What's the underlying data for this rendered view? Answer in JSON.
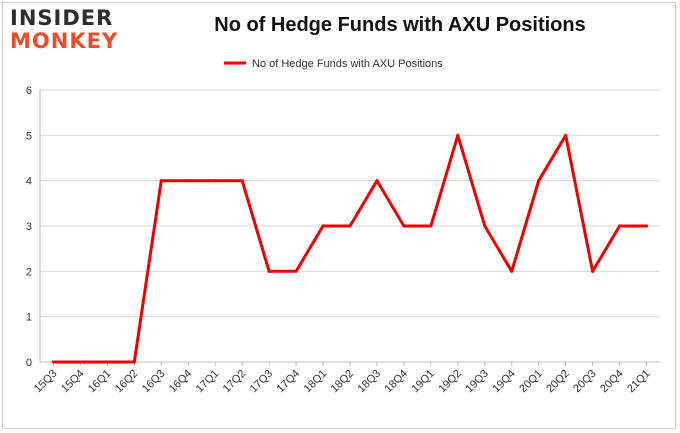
{
  "logo": {
    "line1": "INSIDER",
    "line2": "MONKEY"
  },
  "colors": {
    "series": "#ee0000",
    "grid": "#d9d9d9",
    "axis": "#bfbfbf",
    "logo_accent": "#ee4b2b"
  },
  "chart_data": {
    "type": "line",
    "title": "No of Hedge Funds with AXU Positions",
    "xlabel": "",
    "ylabel": "",
    "ylim": [
      0,
      6
    ],
    "yticks": [
      0,
      1,
      2,
      3,
      4,
      5,
      6
    ],
    "grid": true,
    "legend": "top-center",
    "categories": [
      "15Q3",
      "15Q4",
      "16Q1",
      "16Q2",
      "16Q3",
      "16Q4",
      "17Q1",
      "17Q2",
      "17Q3",
      "17Q4",
      "18Q1",
      "18Q2",
      "18Q3",
      "18Q4",
      "19Q1",
      "19Q2",
      "19Q3",
      "19Q4",
      "20Q1",
      "20Q2",
      "20Q3",
      "20Q4",
      "21Q1"
    ],
    "series": [
      {
        "name": "No of Hedge Funds with AXU Positions",
        "values": [
          0,
          0,
          0,
          0,
          4,
          4,
          4,
          4,
          2,
          2,
          3,
          3,
          4,
          3,
          3,
          5,
          3,
          2,
          4,
          5,
          2,
          3,
          3
        ]
      }
    ]
  }
}
